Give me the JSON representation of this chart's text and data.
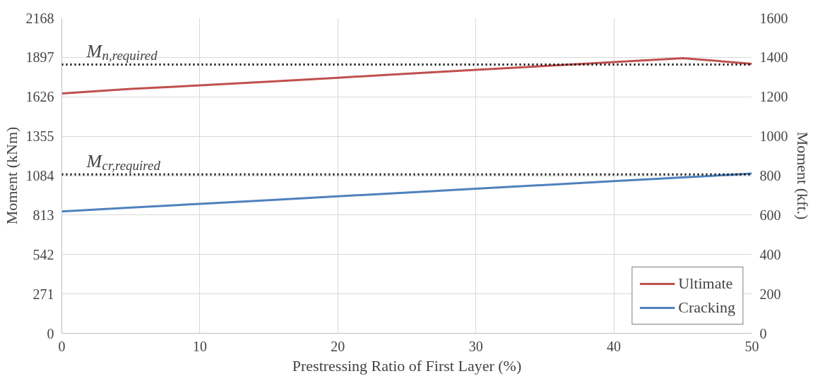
{
  "chart_data": {
    "type": "line",
    "xlabel": "Prestressing Ratio of First Layer (%)",
    "ylabel": "Moment (kNm)",
    "y2label": "Moment (kft.)",
    "x": [
      0,
      5,
      10,
      15,
      20,
      25,
      30,
      35,
      40,
      45,
      50
    ],
    "series": [
      {
        "name": "Ultimate",
        "color": "#c0504d",
        "values": [
          1649,
          1680,
          1705,
          1730,
          1757,
          1785,
          1812,
          1838,
          1865,
          1892,
          1853
        ]
      },
      {
        "name": "Cracking",
        "color": "#4f81bd",
        "values": [
          838,
          864,
          890,
          916,
          942,
          968,
          994,
          1020,
          1046,
          1072,
          1098
        ]
      }
    ],
    "xlim": [
      0,
      50
    ],
    "xticks": [
      0,
      10,
      20,
      30,
      40,
      50
    ],
    "ylim": [
      0,
      2168
    ],
    "yticks": [
      0,
      271,
      542,
      813,
      1084,
      1355,
      1626,
      1897,
      2168
    ],
    "y2lim": [
      0,
      1600
    ],
    "y2ticks": [
      0,
      200,
      400,
      600,
      800,
      1000,
      1200,
      1400,
      1600
    ],
    "ref_lines": [
      {
        "axis": "y",
        "value": 1848,
        "label": "M$_{n,required}$",
        "color": "#000000",
        "line_style": "dotted"
      },
      {
        "axis": "y",
        "value": 1092,
        "label": "M$_{cr,required}$",
        "color": "#000000",
        "line_style": "dotted"
      }
    ],
    "grid": true,
    "legend": "bottom right",
    "marker": "none",
    "line_style": "solid"
  }
}
